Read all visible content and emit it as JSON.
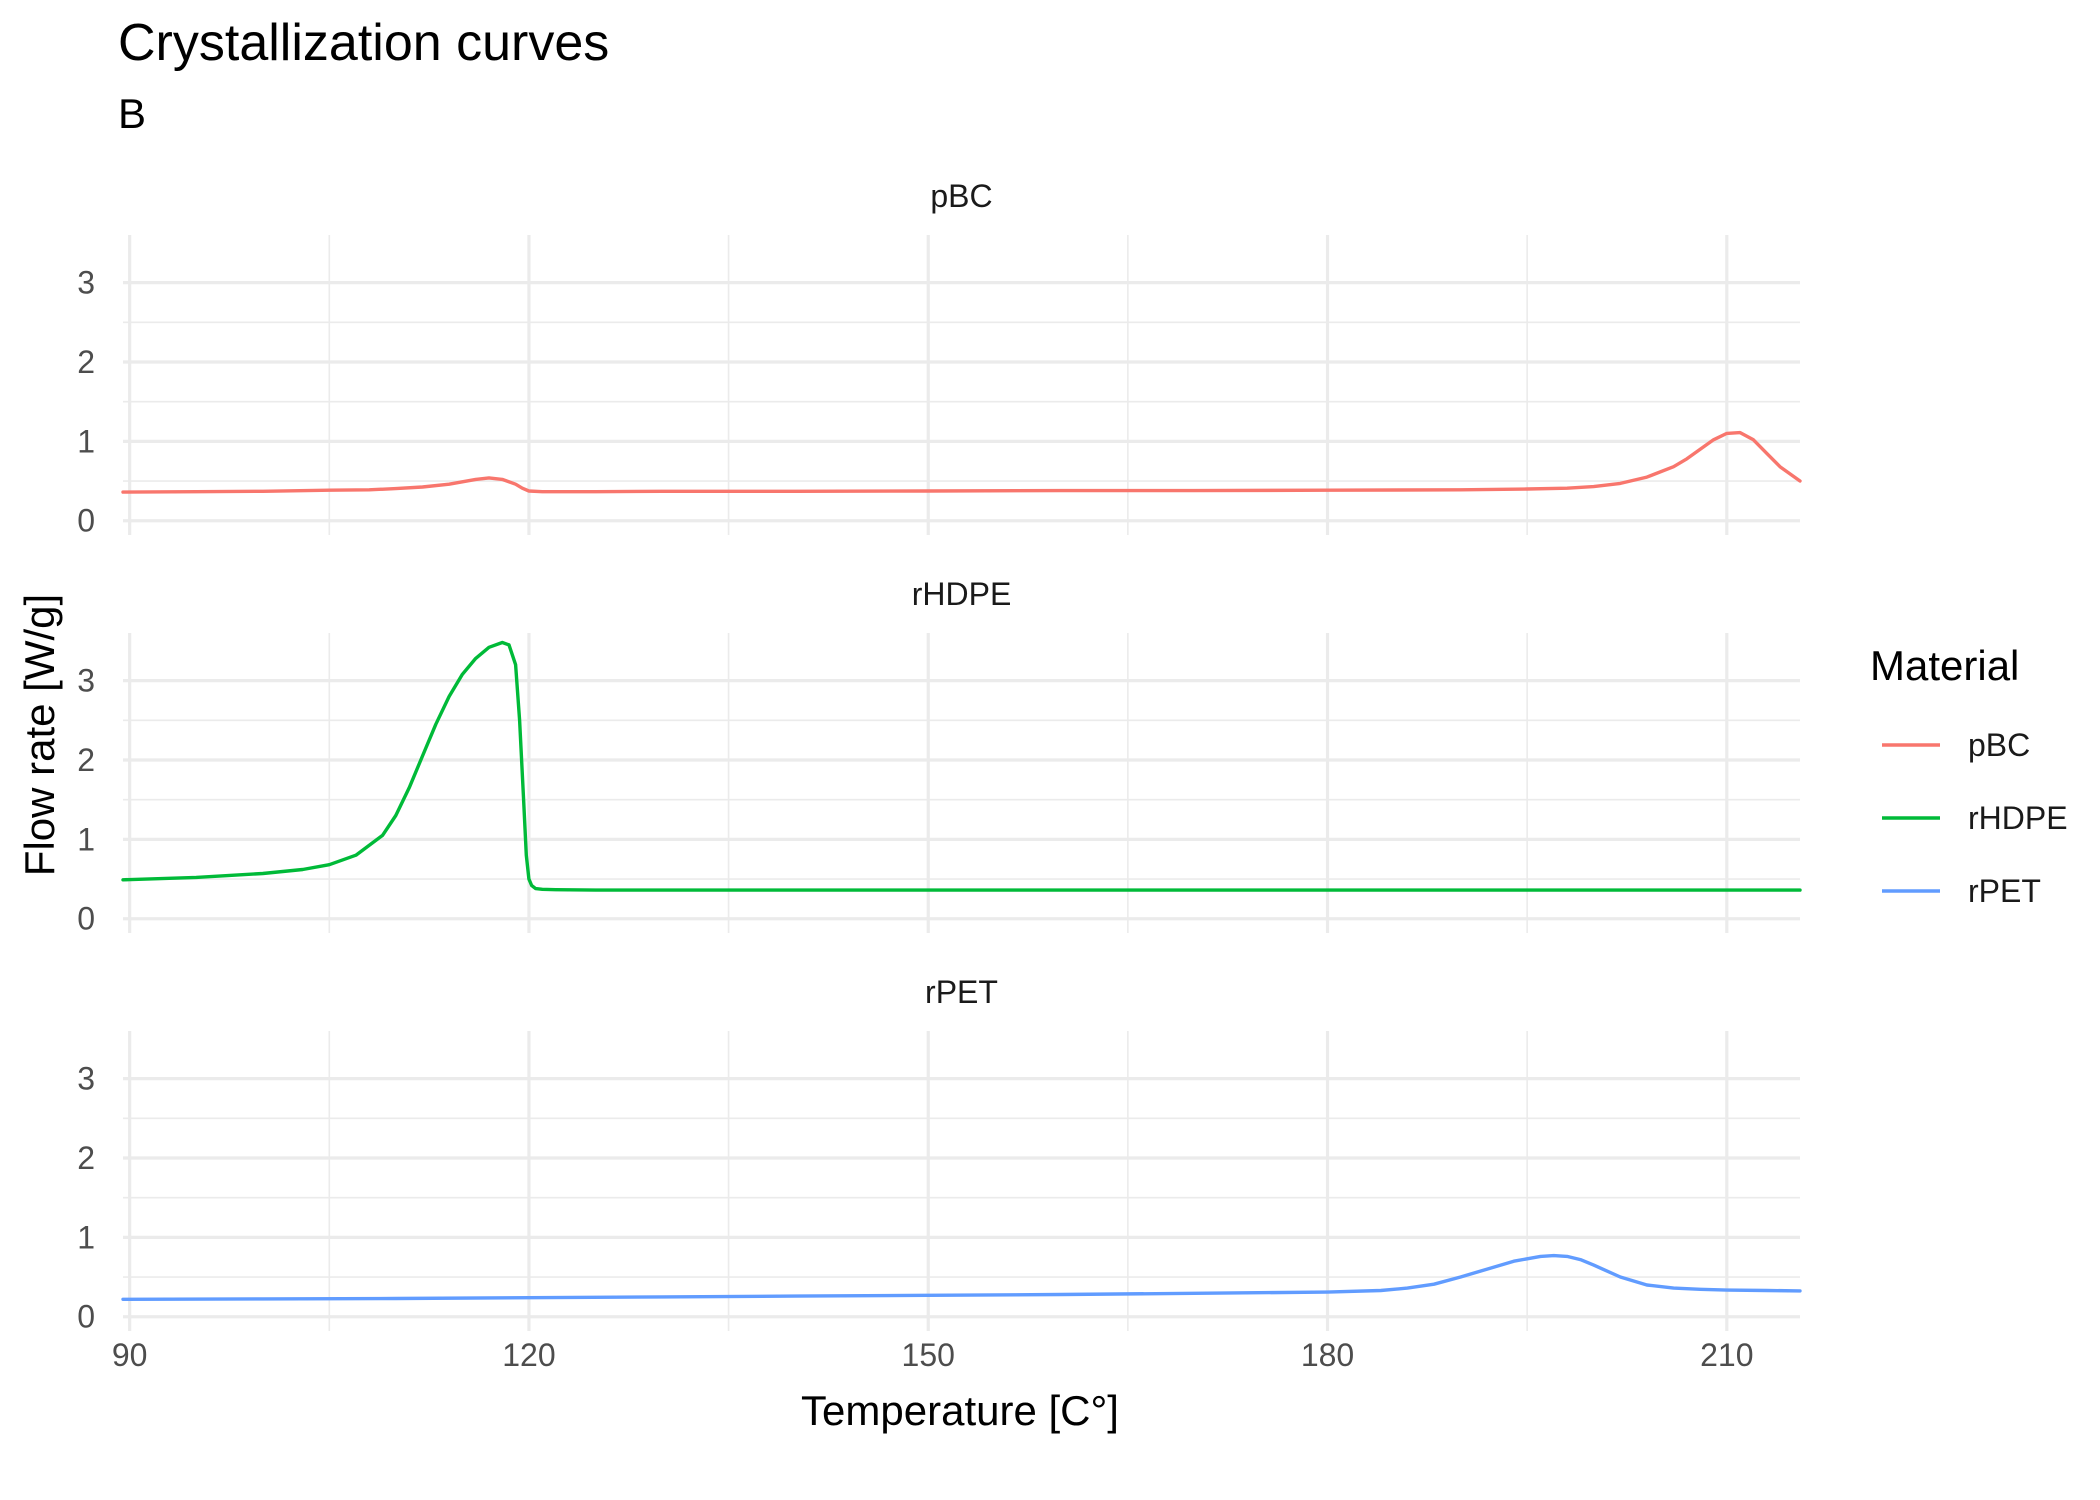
{
  "chart_data": {
    "type": "line",
    "title": "Crystallization curves",
    "subtitle": "B",
    "xlabel": "Temperature [C°]",
    "ylabel": "Flow rate [W/g]",
    "xlim": [
      89.5,
      215.5
    ],
    "ylim": [
      -0.18,
      3.6
    ],
    "x_ticks": [
      90,
      120,
      150,
      180,
      210
    ],
    "y_ticks": [
      0,
      1,
      2,
      3
    ],
    "grid": true,
    "legend": {
      "title": "Material",
      "position": "right",
      "entries": [
        "pBC",
        "rHDPE",
        "rPET"
      ]
    },
    "facets": [
      "pBC",
      "rHDPE",
      "rPET"
    ],
    "series": [
      {
        "name": "pBC",
        "color": "#F8766D",
        "x": [
          89.5,
          95,
          100,
          105,
          108,
          110,
          112,
          114,
          115,
          116,
          117,
          118,
          119,
          119.5,
          120,
          121,
          125,
          130,
          140,
          150,
          160,
          170,
          180,
          190,
          195,
          198,
          200,
          202,
          204,
          206,
          207,
          208,
          209,
          210,
          211,
          212,
          213,
          214,
          215.5
        ],
        "y": [
          0.36,
          0.365,
          0.37,
          0.385,
          0.39,
          0.405,
          0.425,
          0.46,
          0.49,
          0.52,
          0.54,
          0.52,
          0.46,
          0.41,
          0.375,
          0.365,
          0.365,
          0.37,
          0.37,
          0.375,
          0.38,
          0.38,
          0.385,
          0.39,
          0.4,
          0.41,
          0.43,
          0.47,
          0.55,
          0.68,
          0.78,
          0.9,
          1.02,
          1.1,
          1.11,
          1.02,
          0.85,
          0.68,
          0.5
        ]
      },
      {
        "name": "rHDPE",
        "color": "#00BA38",
        "x": [
          89.5,
          95,
          100,
          103,
          105,
          107,
          109,
          110,
          111,
          112,
          113,
          114,
          115,
          116,
          117,
          118,
          118.5,
          119,
          119.3,
          119.6,
          119.8,
          120,
          120.2,
          120.5,
          121,
          122,
          125,
          130,
          150,
          180,
          200,
          215.5
        ],
        "y": [
          0.49,
          0.52,
          0.57,
          0.62,
          0.68,
          0.8,
          1.05,
          1.3,
          1.65,
          2.05,
          2.45,
          2.8,
          3.08,
          3.28,
          3.42,
          3.48,
          3.45,
          3.2,
          2.5,
          1.5,
          0.8,
          0.5,
          0.42,
          0.38,
          0.37,
          0.365,
          0.36,
          0.36,
          0.36,
          0.36,
          0.36,
          0.36
        ]
      },
      {
        "name": "rPET",
        "color": "#619CFF",
        "x": [
          89.5,
          100,
          110,
          120,
          130,
          140,
          150,
          160,
          170,
          180,
          184,
          186,
          188,
          190,
          192,
          194,
          196,
          197,
          198,
          199,
          200,
          202,
          204,
          206,
          208,
          210,
          213,
          215.5
        ],
        "y": [
          0.22,
          0.225,
          0.23,
          0.24,
          0.25,
          0.26,
          0.27,
          0.28,
          0.295,
          0.31,
          0.33,
          0.36,
          0.41,
          0.5,
          0.6,
          0.7,
          0.76,
          0.77,
          0.76,
          0.72,
          0.65,
          0.5,
          0.4,
          0.36,
          0.345,
          0.335,
          0.33,
          0.325
        ]
      }
    ]
  }
}
